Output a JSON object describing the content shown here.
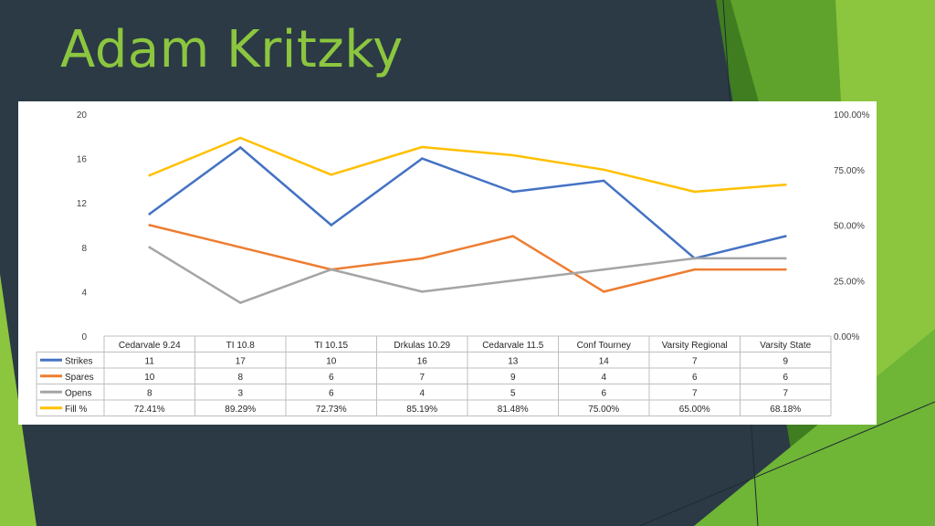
{
  "slide": {
    "title": "Adam Kritzky"
  },
  "colors": {
    "background": "#2b3a45",
    "title": "#8cc63f",
    "accent_green_light": "#8cc63f",
    "accent_green_mid": "#5fa32c",
    "accent_green_dark": "#3f7d20"
  },
  "chart_data": {
    "type": "line",
    "title": "",
    "xlabel": "",
    "ylabel": "",
    "categories": [
      "Cedarvale 9.24",
      "TI 10.8",
      "TI 10.15",
      "Drkulas 10.29",
      "Cedarvale 11.5",
      "Conf Tourney",
      "Varsity Regional",
      "Varsity State"
    ],
    "y_left": {
      "min": 0,
      "max": 20,
      "ticks": [
        "0",
        "4",
        "8",
        "12",
        "16",
        "20"
      ]
    },
    "y_right": {
      "min": 0,
      "max": 100,
      "ticks": [
        "0.00%",
        "25.00%",
        "50.00%",
        "75.00%",
        "100.00%"
      ]
    },
    "grid": false,
    "legend": "data-table-below",
    "series": [
      {
        "name": "Strikes",
        "axis": "left",
        "color": "#4472c4",
        "values": [
          11,
          17,
          10,
          16,
          13,
          14,
          7,
          9
        ],
        "labels": [
          "11",
          "17",
          "10",
          "16",
          "13",
          "14",
          "7",
          "9"
        ]
      },
      {
        "name": "Spares",
        "axis": "left",
        "color": "#ed7d31",
        "values": [
          10,
          8,
          6,
          7,
          9,
          4,
          6,
          6
        ],
        "labels": [
          "10",
          "8",
          "6",
          "7",
          "9",
          "4",
          "6",
          "6"
        ]
      },
      {
        "name": "Opens",
        "axis": "left",
        "color": "#a5a5a5",
        "values": [
          8,
          3,
          6,
          4,
          5,
          6,
          7,
          7
        ],
        "labels": [
          "8",
          "3",
          "6",
          "4",
          "5",
          "6",
          "7",
          "7"
        ]
      },
      {
        "name": "Fill %",
        "axis": "right",
        "color": "#ffc000",
        "values": [
          72.41,
          89.29,
          72.73,
          85.19,
          81.48,
          75.0,
          65.0,
          68.18
        ],
        "labels": [
          "72.41%",
          "89.29%",
          "72.73%",
          "85.19%",
          "81.48%",
          "75.00%",
          "65.00%",
          "68.18%"
        ]
      }
    ]
  }
}
